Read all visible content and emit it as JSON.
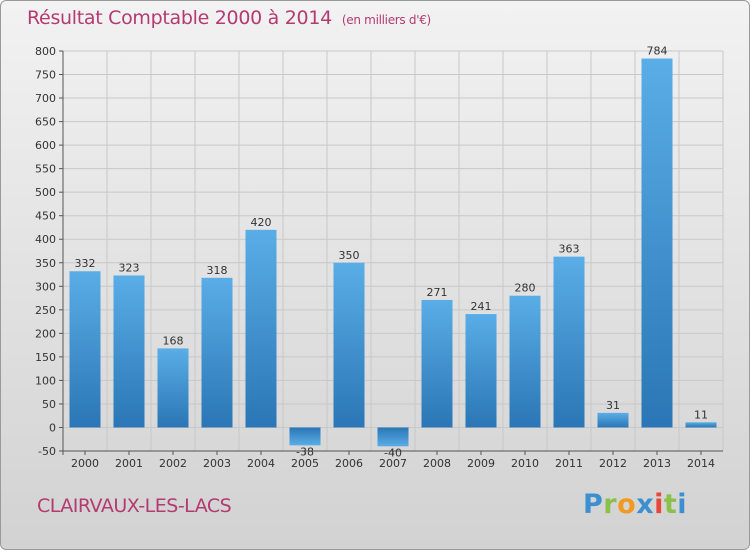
{
  "header": {
    "title": "Résultat Comptable 2000 à 2014",
    "unit": "(en milliers d'€)"
  },
  "commune": "CLAIRVAUX-LES-LACS",
  "logo": {
    "letters": [
      "P",
      "r",
      "o",
      "x",
      "i",
      "t",
      "i"
    ]
  },
  "chart_data": {
    "type": "bar",
    "title": "Résultat Comptable 2000 à 2014",
    "unit_label": "(en milliers d'€)",
    "categories": [
      "2000",
      "2001",
      "2002",
      "2003",
      "2004",
      "2005",
      "2006",
      "2007",
      "2008",
      "2009",
      "2010",
      "2011",
      "2012",
      "2013",
      "2014"
    ],
    "values": [
      332,
      323,
      168,
      318,
      420,
      -38,
      350,
      -40,
      271,
      241,
      280,
      363,
      31,
      784,
      11
    ],
    "value_labels": [
      "332",
      "323",
      "168",
      "318",
      "420",
      "-38",
      "350",
      "-40",
      "271",
      "241",
      "280",
      "363",
      "31",
      "784",
      "11"
    ],
    "ylim": [
      -50,
      800
    ],
    "yticks": [
      -50,
      0,
      50,
      100,
      150,
      200,
      250,
      300,
      350,
      400,
      450,
      500,
      550,
      600,
      650,
      700,
      750,
      800
    ],
    "grid": true,
    "bar_color": "#3d8fd6"
  }
}
